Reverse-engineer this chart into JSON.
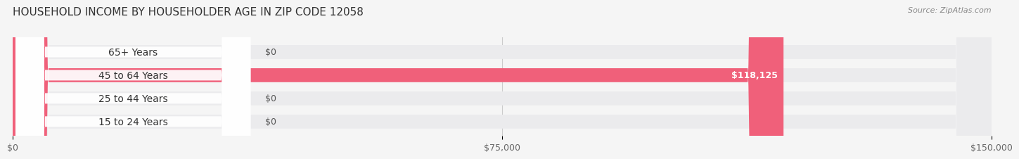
{
  "title": "HOUSEHOLD INCOME BY HOUSEHOLDER AGE IN ZIP CODE 12058",
  "source": "Source: ZipAtlas.com",
  "categories": [
    "15 to 24 Years",
    "25 to 44 Years",
    "45 to 64 Years",
    "65+ Years"
  ],
  "values": [
    0,
    0,
    118125,
    0
  ],
  "bar_colors": [
    "#6ECFCB",
    "#A99FD4",
    "#F0607A",
    "#F5C98A"
  ],
  "label_colors": [
    "#555555",
    "#555555",
    "#ffffff",
    "#555555"
  ],
  "bar_labels": [
    "$0",
    "$0",
    "$118,125",
    "$0"
  ],
  "xlim": [
    0,
    150000
  ],
  "xticks": [
    0,
    75000,
    150000
  ],
  "xtick_labels": [
    "$0",
    "$75,000",
    "$150,000"
  ],
  "background_color": "#f5f5f5",
  "bar_background_color": "#ebebed",
  "title_fontsize": 11,
  "source_fontsize": 8,
  "tick_fontsize": 9,
  "label_fontsize": 9,
  "category_fontsize": 10,
  "bar_height": 0.6
}
